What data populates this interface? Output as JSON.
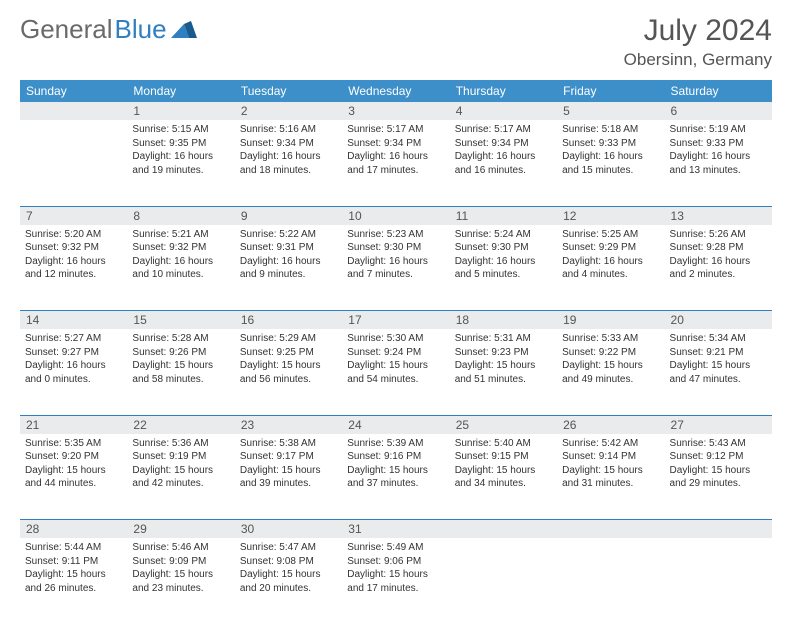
{
  "header": {
    "logo_text_1": "General",
    "logo_text_2": "Blue",
    "month_title": "July 2024",
    "location": "Obersinn, Germany"
  },
  "colors": {
    "header_bg": "#3d8fc9",
    "border": "#2f7fc1",
    "day_row_bg": "#e9ebec",
    "text": "#333333",
    "logo_gray": "#6a6a6a",
    "logo_blue": "#2f7fc1"
  },
  "day_headers": [
    "Sunday",
    "Monday",
    "Tuesday",
    "Wednesday",
    "Thursday",
    "Friday",
    "Saturday"
  ],
  "weeks": [
    {
      "nums": [
        "",
        "1",
        "2",
        "3",
        "4",
        "5",
        "6"
      ],
      "cells": [
        {
          "sunrise": "",
          "sunset": "",
          "daylight": ""
        },
        {
          "sunrise": "Sunrise: 5:15 AM",
          "sunset": "Sunset: 9:35 PM",
          "daylight": "Daylight: 16 hours and 19 minutes."
        },
        {
          "sunrise": "Sunrise: 5:16 AM",
          "sunset": "Sunset: 9:34 PM",
          "daylight": "Daylight: 16 hours and 18 minutes."
        },
        {
          "sunrise": "Sunrise: 5:17 AM",
          "sunset": "Sunset: 9:34 PM",
          "daylight": "Daylight: 16 hours and 17 minutes."
        },
        {
          "sunrise": "Sunrise: 5:17 AM",
          "sunset": "Sunset: 9:34 PM",
          "daylight": "Daylight: 16 hours and 16 minutes."
        },
        {
          "sunrise": "Sunrise: 5:18 AM",
          "sunset": "Sunset: 9:33 PM",
          "daylight": "Daylight: 16 hours and 15 minutes."
        },
        {
          "sunrise": "Sunrise: 5:19 AM",
          "sunset": "Sunset: 9:33 PM",
          "daylight": "Daylight: 16 hours and 13 minutes."
        }
      ]
    },
    {
      "nums": [
        "7",
        "8",
        "9",
        "10",
        "11",
        "12",
        "13"
      ],
      "cells": [
        {
          "sunrise": "Sunrise: 5:20 AM",
          "sunset": "Sunset: 9:32 PM",
          "daylight": "Daylight: 16 hours and 12 minutes."
        },
        {
          "sunrise": "Sunrise: 5:21 AM",
          "sunset": "Sunset: 9:32 PM",
          "daylight": "Daylight: 16 hours and 10 minutes."
        },
        {
          "sunrise": "Sunrise: 5:22 AM",
          "sunset": "Sunset: 9:31 PM",
          "daylight": "Daylight: 16 hours and 9 minutes."
        },
        {
          "sunrise": "Sunrise: 5:23 AM",
          "sunset": "Sunset: 9:30 PM",
          "daylight": "Daylight: 16 hours and 7 minutes."
        },
        {
          "sunrise": "Sunrise: 5:24 AM",
          "sunset": "Sunset: 9:30 PM",
          "daylight": "Daylight: 16 hours and 5 minutes."
        },
        {
          "sunrise": "Sunrise: 5:25 AM",
          "sunset": "Sunset: 9:29 PM",
          "daylight": "Daylight: 16 hours and 4 minutes."
        },
        {
          "sunrise": "Sunrise: 5:26 AM",
          "sunset": "Sunset: 9:28 PM",
          "daylight": "Daylight: 16 hours and 2 minutes."
        }
      ]
    },
    {
      "nums": [
        "14",
        "15",
        "16",
        "17",
        "18",
        "19",
        "20"
      ],
      "cells": [
        {
          "sunrise": "Sunrise: 5:27 AM",
          "sunset": "Sunset: 9:27 PM",
          "daylight": "Daylight: 16 hours and 0 minutes."
        },
        {
          "sunrise": "Sunrise: 5:28 AM",
          "sunset": "Sunset: 9:26 PM",
          "daylight": "Daylight: 15 hours and 58 minutes."
        },
        {
          "sunrise": "Sunrise: 5:29 AM",
          "sunset": "Sunset: 9:25 PM",
          "daylight": "Daylight: 15 hours and 56 minutes."
        },
        {
          "sunrise": "Sunrise: 5:30 AM",
          "sunset": "Sunset: 9:24 PM",
          "daylight": "Daylight: 15 hours and 54 minutes."
        },
        {
          "sunrise": "Sunrise: 5:31 AM",
          "sunset": "Sunset: 9:23 PM",
          "daylight": "Daylight: 15 hours and 51 minutes."
        },
        {
          "sunrise": "Sunrise: 5:33 AM",
          "sunset": "Sunset: 9:22 PM",
          "daylight": "Daylight: 15 hours and 49 minutes."
        },
        {
          "sunrise": "Sunrise: 5:34 AM",
          "sunset": "Sunset: 9:21 PM",
          "daylight": "Daylight: 15 hours and 47 minutes."
        }
      ]
    },
    {
      "nums": [
        "21",
        "22",
        "23",
        "24",
        "25",
        "26",
        "27"
      ],
      "cells": [
        {
          "sunrise": "Sunrise: 5:35 AM",
          "sunset": "Sunset: 9:20 PM",
          "daylight": "Daylight: 15 hours and 44 minutes."
        },
        {
          "sunrise": "Sunrise: 5:36 AM",
          "sunset": "Sunset: 9:19 PM",
          "daylight": "Daylight: 15 hours and 42 minutes."
        },
        {
          "sunrise": "Sunrise: 5:38 AM",
          "sunset": "Sunset: 9:17 PM",
          "daylight": "Daylight: 15 hours and 39 minutes."
        },
        {
          "sunrise": "Sunrise: 5:39 AM",
          "sunset": "Sunset: 9:16 PM",
          "daylight": "Daylight: 15 hours and 37 minutes."
        },
        {
          "sunrise": "Sunrise: 5:40 AM",
          "sunset": "Sunset: 9:15 PM",
          "daylight": "Daylight: 15 hours and 34 minutes."
        },
        {
          "sunrise": "Sunrise: 5:42 AM",
          "sunset": "Sunset: 9:14 PM",
          "daylight": "Daylight: 15 hours and 31 minutes."
        },
        {
          "sunrise": "Sunrise: 5:43 AM",
          "sunset": "Sunset: 9:12 PM",
          "daylight": "Daylight: 15 hours and 29 minutes."
        }
      ]
    },
    {
      "nums": [
        "28",
        "29",
        "30",
        "31",
        "",
        "",
        ""
      ],
      "cells": [
        {
          "sunrise": "Sunrise: 5:44 AM",
          "sunset": "Sunset: 9:11 PM",
          "daylight": "Daylight: 15 hours and 26 minutes."
        },
        {
          "sunrise": "Sunrise: 5:46 AM",
          "sunset": "Sunset: 9:09 PM",
          "daylight": "Daylight: 15 hours and 23 minutes."
        },
        {
          "sunrise": "Sunrise: 5:47 AM",
          "sunset": "Sunset: 9:08 PM",
          "daylight": "Daylight: 15 hours and 20 minutes."
        },
        {
          "sunrise": "Sunrise: 5:49 AM",
          "sunset": "Sunset: 9:06 PM",
          "daylight": "Daylight: 15 hours and 17 minutes."
        },
        {
          "sunrise": "",
          "sunset": "",
          "daylight": ""
        },
        {
          "sunrise": "",
          "sunset": "",
          "daylight": ""
        },
        {
          "sunrise": "",
          "sunset": "",
          "daylight": ""
        }
      ]
    }
  ]
}
